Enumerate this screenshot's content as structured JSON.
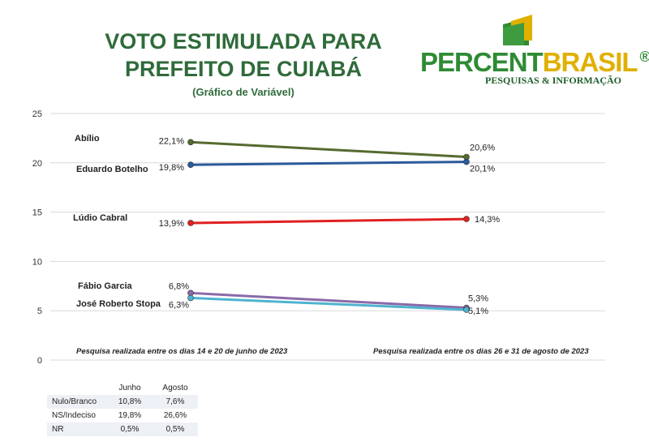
{
  "header": {
    "title_line1": "VOTO ESTIMULADA PARA",
    "title_line2": "PREFEITO DE CUIABÁ",
    "subtitle": "(Gráfico de Variável)"
  },
  "logo": {
    "brand_part1": "PERCENT",
    "brand_part2": "BRASIL",
    "registered": "®",
    "tagline": "PESQUISAS & INFORMAÇÃO",
    "colors": {
      "green": "#2e8b34",
      "yellow": "#e0b000"
    }
  },
  "chart_data": {
    "type": "line",
    "x": [
      "Junho",
      "Agosto"
    ],
    "ylim": [
      0,
      25
    ],
    "yticks": [
      0,
      5,
      10,
      15,
      20,
      25
    ],
    "grid": true,
    "series": [
      {
        "name": "Abílio",
        "values": [
          22.1,
          20.6
        ],
        "labels": [
          "22,1%",
          "20,6%"
        ],
        "color": "#556b2f"
      },
      {
        "name": "Eduardo Botelho",
        "values": [
          19.8,
          20.1
        ],
        "labels": [
          "19,8%",
          "20,1%"
        ],
        "color": "#2a5a9a"
      },
      {
        "name": "Lúdio Cabral",
        "values": [
          13.9,
          14.3
        ],
        "labels": [
          "13,9%",
          "14,3%"
        ],
        "color": "#e02020"
      },
      {
        "name": "Fábio Garcia",
        "values": [
          6.8,
          5.3
        ],
        "labels": [
          "6,8%",
          "5,3%"
        ],
        "color": "#8a6aa8"
      },
      {
        "name": "José Roberto Stopa",
        "values": [
          6.3,
          5.1
        ],
        "labels": [
          "6,3%",
          "5,1%"
        ],
        "color": "#4fb3d0"
      }
    ],
    "annotations": [
      "Pesquisa realizada entre os dias 14 e 20 de junho de 2023",
      "Pesquisa realizada entre os dias 26 e 31 de agosto de 2023"
    ]
  },
  "table": {
    "headers": [
      "",
      "Junho",
      "Agosto"
    ],
    "rows": [
      [
        "Nulo/Branco",
        "10,8%",
        "7,6%"
      ],
      [
        "NS/Indeciso",
        "19,8%",
        "26,6%"
      ],
      [
        "NR",
        "0,5%",
        "0,5%"
      ]
    ]
  }
}
